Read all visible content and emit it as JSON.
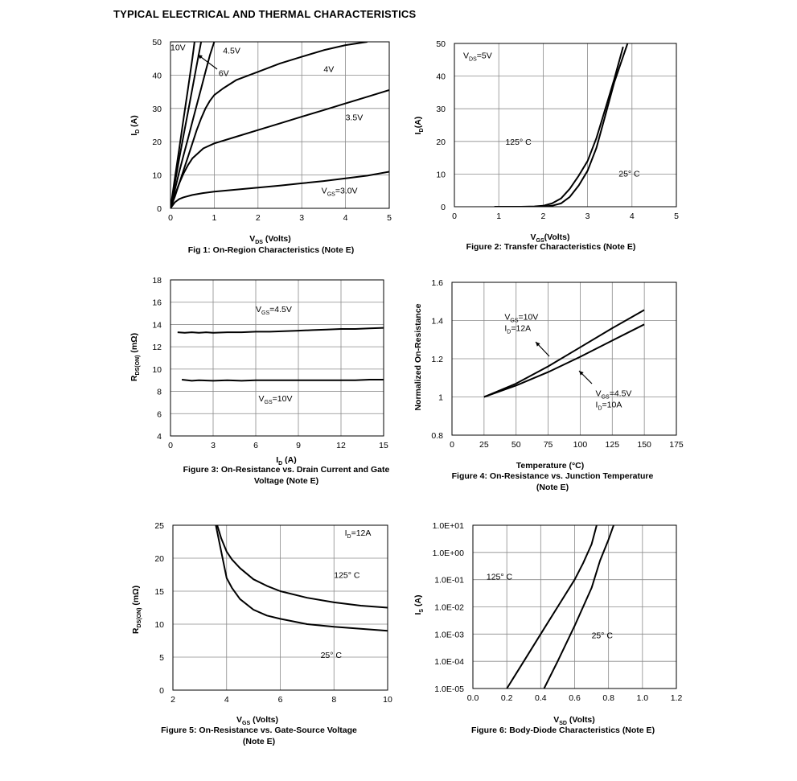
{
  "page": {
    "title": "TYPICAL ELECTRICAL AND THERMAL CHARACTERISTICS"
  },
  "chart_data": [
    {
      "type": "line",
      "caption": "Fig 1: On-Region Characteristics (Note E)",
      "xlabel_main": "V",
      "xlabel_sub": "DS",
      "xlabel_tail": " (Volts)",
      "ylabel_main": "I",
      "ylabel_sub": "D",
      "ylabel_tail": " (A)",
      "xlim": [
        0,
        5
      ],
      "ylim": [
        0,
        50
      ],
      "xticks": [
        0,
        1,
        2,
        3,
        4,
        5
      ],
      "yticks": [
        0,
        10,
        20,
        30,
        40,
        50
      ],
      "series": [
        {
          "x": [
            0,
            0.1,
            0.2,
            0.3,
            0.4,
            0.5,
            0.55
          ],
          "y": [
            0,
            9,
            18,
            27,
            36,
            45,
            50
          ]
        },
        {
          "x": [
            0,
            0.1,
            0.2,
            0.3,
            0.4,
            0.5,
            0.6,
            0.7
          ],
          "y": [
            0,
            7.5,
            15,
            22,
            29,
            36,
            43,
            50
          ]
        },
        {
          "x": [
            0,
            0.1,
            0.2,
            0.3,
            0.4,
            0.5,
            0.6,
            0.7,
            0.8,
            0.9,
            1.0
          ],
          "y": [
            0,
            5.5,
            11,
            16,
            21,
            26,
            31,
            36,
            41,
            46,
            50
          ]
        },
        {
          "x": [
            0,
            0.1,
            0.2,
            0.3,
            0.4,
            0.5,
            0.6,
            0.7,
            0.8,
            0.9,
            1.0,
            1.2,
            1.5,
            2,
            2.5,
            3,
            3.5,
            4,
            4.5
          ],
          "y": [
            0,
            3.5,
            7.5,
            11.5,
            15.5,
            19.5,
            23.5,
            27,
            30,
            32.3,
            34,
            36,
            38.5,
            41,
            43.5,
            45.5,
            47.5,
            49,
            50
          ]
        },
        {
          "x": [
            0,
            0.1,
            0.2,
            0.3,
            0.4,
            0.5,
            0.75,
            1.0,
            1.5,
            2,
            2.5,
            3,
            3.5,
            4,
            4.5,
            5
          ],
          "y": [
            0,
            4,
            7.5,
            10.5,
            13,
            15,
            18,
            19.5,
            21.5,
            23.5,
            25.5,
            27.5,
            29.5,
            31.5,
            33.5,
            35.5
          ]
        },
        {
          "x": [
            0,
            0.1,
            0.2,
            0.3,
            0.5,
            0.75,
            1,
            1.5,
            2,
            2.5,
            3,
            3.5,
            4,
            4.5,
            5
          ],
          "y": [
            0,
            1.8,
            2.8,
            3.3,
            4,
            4.6,
            5,
            5.6,
            6.2,
            6.8,
            7.5,
            8.2,
            9,
            9.8,
            11
          ]
        }
      ],
      "labels": [
        {
          "text": "10V",
          "x": 0.0,
          "y": 47.5
        },
        {
          "text": "4.5V",
          "x": 1.2,
          "y": 46.5
        },
        {
          "text": "6V",
          "x": 1.1,
          "y": 39.7
        },
        {
          "text": "4V",
          "x": 3.5,
          "y": 41
        },
        {
          "text": "3.5V",
          "x": 4.0,
          "y": 26.5
        },
        {
          "text": "=3.0V",
          "x": 3.45,
          "y": 4.5,
          "main": "V",
          "sub": "GS"
        }
      ]
    },
    {
      "type": "line",
      "caption": "Figure 2: Transfer Characteristics (Note E)",
      "xlabel_main": "V",
      "xlabel_sub": "GS",
      "xlabel_tail": "(Volts)",
      "ylabel_main": "I",
      "ylabel_sub": "D",
      "ylabel_tail": "(A)",
      "xlim": [
        0,
        5
      ],
      "ylim": [
        0,
        50
      ],
      "xticks": [
        0,
        1,
        2,
        3,
        4,
        5
      ],
      "yticks": [
        0,
        10,
        20,
        30,
        40,
        50
      ],
      "series": [
        {
          "name": "125° C",
          "x": [
            0.9,
            1.5,
            1.8,
            2.0,
            2.2,
            2.4,
            2.6,
            2.8,
            3.0,
            3.2,
            3.4,
            3.6,
            3.8
          ],
          "y": [
            0,
            0,
            0.1,
            0.3,
            1,
            2.5,
            5.5,
            9.5,
            14,
            21,
            30,
            39,
            49
          ]
        },
        {
          "name": "25° C",
          "x": [
            1.2,
            1.8,
            2.0,
            2.2,
            2.4,
            2.6,
            2.8,
            3.0,
            3.2,
            3.4,
            3.6,
            3.8,
            3.9
          ],
          "y": [
            0,
            0,
            0.1,
            0.3,
            1,
            3,
            6.5,
            11,
            18,
            28,
            38,
            46,
            50
          ]
        }
      ],
      "labels": [
        {
          "text": "=5V",
          "x": 0.2,
          "y": 45.5,
          "main": "V",
          "sub": "DS"
        },
        {
          "text": "125° C",
          "x": 1.15,
          "y": 19
        },
        {
          "text": "25° C",
          "x": 3.7,
          "y": 9.2
        }
      ]
    },
    {
      "type": "line",
      "caption": "Figure 3: On-Resistance vs. Drain Current and Gate Voltage (Note E)",
      "xlabel_main": "I",
      "xlabel_sub": "D",
      "xlabel_tail": " (A)",
      "ylabel_main": "R",
      "ylabel_sub": "DS(ON)",
      "ylabel_tail": " (mΩ)",
      "xlim": [
        0,
        15
      ],
      "ylim": [
        4,
        18
      ],
      "xticks": [
        0,
        3,
        6,
        9,
        12,
        15
      ],
      "yticks": [
        4,
        6,
        8,
        10,
        12,
        14,
        16,
        18
      ],
      "series": [
        {
          "name": "VGS=4.5V",
          "x": [
            0.5,
            1,
            1.5,
            2,
            2.5,
            3,
            4,
            5,
            6,
            7,
            8,
            9,
            10,
            11,
            12,
            13,
            14,
            15
          ],
          "y": [
            13.3,
            13.25,
            13.3,
            13.25,
            13.3,
            13.25,
            13.3,
            13.3,
            13.35,
            13.35,
            13.4,
            13.45,
            13.5,
            13.55,
            13.6,
            13.6,
            13.65,
            13.7
          ]
        },
        {
          "name": "VGS=10V",
          "x": [
            0.8,
            1.5,
            2,
            3,
            4,
            5,
            6,
            7,
            8,
            9,
            10,
            11,
            12,
            13,
            14,
            15
          ],
          "y": [
            9.05,
            8.95,
            9.0,
            8.95,
            9.0,
            8.95,
            9.0,
            9.0,
            9.0,
            9.0,
            9.0,
            9.0,
            9.0,
            9.0,
            9.05,
            9.05
          ]
        }
      ],
      "labels": [
        {
          "text": "=4.5V",
          "x": 6.0,
          "y": 15.1,
          "main": "V",
          "sub": "GS"
        },
        {
          "text": "=10V",
          "x": 6.2,
          "y": 7.1,
          "main": "V",
          "sub": "GS"
        }
      ]
    },
    {
      "type": "line",
      "caption": "Figure 4: On-Resistance vs. Junction Temperature (Note E)",
      "xlabel": "Temperature (°C)",
      "ylabel": "Normalized On-Resistance",
      "xlim": [
        0,
        175
      ],
      "ylim": [
        0.8,
        1.6
      ],
      "xticks": [
        0,
        25,
        50,
        75,
        100,
        125,
        150,
        175
      ],
      "yticks": [
        0.8,
        1,
        1.2,
        1.4,
        1.6
      ],
      "ytick_labels": [
        "0.8",
        "1",
        "1.2",
        "1.4",
        "1.6"
      ],
      "series": [
        {
          "name": "VGS=10V, ID=12A",
          "x": [
            25,
            50,
            75,
            100,
            125,
            150
          ],
          "y": [
            1.0,
            1.07,
            1.16,
            1.26,
            1.36,
            1.455
          ]
        },
        {
          "name": "VGS=4.5V, ID=10A",
          "x": [
            25,
            50,
            75,
            100,
            125,
            150
          ],
          "y": [
            1.0,
            1.06,
            1.13,
            1.21,
            1.295,
            1.38
          ]
        }
      ],
      "labels": [
        {
          "text": "=10V",
          "x": 41,
          "y": 1.405,
          "main": "V",
          "sub": "GS"
        },
        {
          "text": "=12A",
          "x": 41,
          "y": 1.345,
          "main": "I",
          "sub": "D"
        },
        {
          "text": "=4.5V",
          "x": 112,
          "y": 1.005,
          "main": "V",
          "sub": "GS"
        },
        {
          "text": "=10A",
          "x": 112,
          "y": 0.945,
          "main": "I",
          "sub": "D"
        }
      ]
    },
    {
      "type": "line",
      "caption": "Figure 5: On-Resistance vs. Gate-Source Voltage (Note E)",
      "xlabel_main": "V",
      "xlabel_sub": "GS",
      "xlabel_tail": " (Volts)",
      "ylabel_main": "R",
      "ylabel_sub": "DS(ON)",
      "ylabel_tail": " (mΩ)",
      "xlim": [
        2,
        10
      ],
      "ylim": [
        0,
        25
      ],
      "xticks": [
        2,
        4,
        6,
        8,
        10
      ],
      "yticks": [
        0,
        5,
        10,
        15,
        20,
        25
      ],
      "series": [
        {
          "name": "125° C",
          "x": [
            3.65,
            3.8,
            4.0,
            4.2,
            4.5,
            5,
            5.5,
            6,
            7,
            8,
            9,
            10
          ],
          "y": [
            25,
            23,
            21,
            19.8,
            18.5,
            16.8,
            15.8,
            15.0,
            14.0,
            13.3,
            12.8,
            12.5
          ]
        },
        {
          "name": "25° C",
          "x": [
            3.6,
            3.8,
            4.0,
            4.2,
            4.5,
            5,
            5.5,
            6,
            7,
            8,
            9,
            10
          ],
          "y": [
            25,
            21,
            17,
            15.5,
            13.8,
            12.2,
            11.3,
            10.8,
            10.0,
            9.6,
            9.3,
            9.0
          ]
        }
      ],
      "labels": [
        {
          "text": "=12A",
          "x": 8.4,
          "y": 23.4,
          "main": "I",
          "sub": "D"
        },
        {
          "text": "125° C",
          "x": 8.0,
          "y": 17.0
        },
        {
          "text": "25° C",
          "x": 7.5,
          "y": 4.9
        }
      ]
    },
    {
      "type": "line",
      "caption": "Figure 6: Body-Diode Characteristics (Note E)",
      "xlabel_main": "V",
      "xlabel_sub": "SD",
      "xlabel_tail": " (Volts)",
      "ylabel_main": "I",
      "ylabel_sub": "S",
      "ylabel_tail": " (A)",
      "log_y": true,
      "xlim": [
        0,
        1.2
      ],
      "ylim": [
        1e-05,
        10
      ],
      "xticks": [
        0,
        0.2,
        0.4,
        0.6,
        0.8,
        1.0,
        1.2
      ],
      "xtick_labels": [
        "0.0",
        "0.2",
        "0.4",
        "0.6",
        "0.8",
        "1.0",
        "1.2"
      ],
      "yticks": [
        1e-05,
        0.0001,
        0.001,
        0.01,
        0.1,
        1,
        10
      ],
      "ytick_labels": [
        "1.0E-05",
        "1.0E-04",
        "1.0E-03",
        "1.0E-02",
        "1.0E-01",
        "1.0E+00",
        "1.0E+01"
      ],
      "series": [
        {
          "name": "125° C",
          "x": [
            0.2,
            0.3,
            0.4,
            0.5,
            0.6,
            0.65,
            0.7,
            0.73
          ],
          "y": [
            1e-05,
            0.0001,
            0.001,
            0.01,
            0.1,
            0.4,
            2,
            10
          ]
        },
        {
          "name": "25° C",
          "x": [
            0.42,
            0.5,
            0.6,
            0.7,
            0.75,
            0.8,
            0.83
          ],
          "y": [
            1e-05,
            0.0001,
            0.002,
            0.05,
            0.5,
            3,
            10
          ]
        }
      ],
      "labels": [
        {
          "text": "125° C",
          "x": 0.08,
          "y": 0.1
        },
        {
          "text": "25° C",
          "x": 0.7,
          "y": 0.0007
        }
      ]
    }
  ]
}
